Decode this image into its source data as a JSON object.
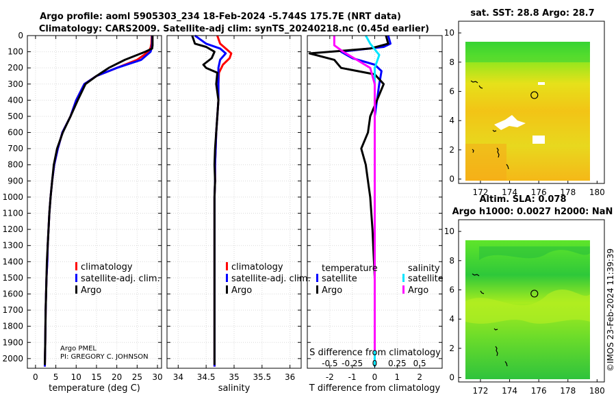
{
  "title_line1": "Argo profile: aoml 5905303_234 18-Feb-2024 -5.744S 175.7E (NRT data)",
  "title_line2": "Climatology: CARS2009. Satellite-adj clim: synTS_20240218.nc (0.45d earlier)",
  "credit_line1": "Argo PMEL",
  "credit_line2": "PI: GREGORY C. JOHNSON",
  "imos_stamp": "©IMOS 23-Feb-2024 11:39:39",
  "chart_data": [
    {
      "type": "line",
      "panel": "temperature",
      "xlabel": "temperature (deg C)",
      "xlim": [
        -2,
        31
      ],
      "xticks": [
        0,
        5,
        10,
        15,
        20,
        25,
        30
      ],
      "ylim": [
        0,
        2060
      ],
      "yticks": [
        0,
        100,
        200,
        300,
        400,
        500,
        600,
        700,
        800,
        900,
        1000,
        1100,
        1200,
        1300,
        1400,
        1500,
        1600,
        1700,
        1800,
        1900,
        2000
      ],
      "legend": [
        "climatology",
        "satellite-adj. clim.",
        "Argo"
      ],
      "series": [
        {
          "name": "climatology",
          "color": "#ff0000",
          "x": [
            28.6,
            28.5,
            28.3,
            27.8,
            25,
            20,
            15,
            12,
            10,
            8.6,
            6.6,
            5.5,
            4.6,
            4.1,
            3.7,
            3.4,
            3.2,
            3,
            2.9,
            2.7,
            2.6,
            2.5,
            2.4,
            2.3
          ],
          "y": [
            0,
            50,
            75,
            100,
            150,
            200,
            250,
            300,
            400,
            500,
            600,
            700,
            800,
            900,
            1000,
            1100,
            1200,
            1300,
            1400,
            1500,
            1600,
            1700,
            1900,
            2050
          ]
        },
        {
          "name": "satellite-adj. clim.",
          "color": "#0000ff",
          "x": [
            28.7,
            28.7,
            28.6,
            28.3,
            26,
            20,
            15,
            12,
            10,
            8.6,
            6.6,
            5.5,
            4.6,
            4.1,
            3.7,
            3.4,
            3.2,
            3,
            2.9,
            2.7,
            2.6,
            2.5,
            2.4,
            2.3
          ],
          "y": [
            0,
            50,
            75,
            100,
            150,
            200,
            250,
            300,
            400,
            500,
            600,
            700,
            800,
            900,
            1000,
            1100,
            1200,
            1300,
            1400,
            1500,
            1600,
            1700,
            1900,
            2050
          ]
        },
        {
          "name": "Argo",
          "color": "#000000",
          "x": [
            28.8,
            28.8,
            28.7,
            27,
            22,
            18,
            15,
            12.3,
            10.4,
            8.6,
            6.7,
            5.3,
            4.5,
            4.1,
            3.7,
            3.4,
            3.2,
            3,
            2.8,
            2.7,
            2.6,
            2.5,
            2.4,
            2.3
          ],
          "y": [
            0,
            60,
            80,
            100,
            150,
            200,
            250,
            300,
            400,
            500,
            600,
            700,
            800,
            900,
            1000,
            1100,
            1200,
            1300,
            1400,
            1500,
            1600,
            1700,
            1900,
            2040
          ]
        }
      ]
    },
    {
      "type": "line",
      "panel": "salinity",
      "xlabel": "salinity",
      "xlim": [
        33.8,
        36.2
      ],
      "xticks": [
        34,
        34.5,
        35,
        35.5,
        36
      ],
      "ylim": [
        0,
        2060
      ],
      "legend": [
        "climatology",
        "satellite-adj. clim.",
        "Argo"
      ],
      "series": [
        {
          "name": "climatology",
          "color": "#ff0000",
          "x": [
            34.7,
            34.75,
            34.85,
            34.95,
            34.92,
            34.8,
            34.73,
            34.72,
            34.72,
            34.7,
            34.68,
            34.67,
            34.66,
            34.66,
            34.65,
            34.65,
            34.65,
            34.65,
            34.65,
            34.65,
            34.65,
            34.65
          ],
          "y": [
            0,
            50,
            80,
            110,
            140,
            180,
            230,
            300,
            400,
            500,
            600,
            700,
            800,
            900,
            1000,
            1100,
            1200,
            1400,
            1600,
            1800,
            1950,
            2050
          ]
        },
        {
          "name": "satellite-adj. clim.",
          "color": "#0000ff",
          "x": [
            34.3,
            34.5,
            34.75,
            34.85,
            34.75,
            34.72,
            34.72,
            34.72,
            34.7,
            34.68,
            34.67,
            34.66,
            34.66,
            34.65,
            34.65,
            34.65,
            34.65,
            34.65,
            34.65,
            34.65,
            34.65
          ],
          "y": [
            0,
            50,
            80,
            110,
            150,
            200,
            300,
            400,
            500,
            600,
            700,
            800,
            900,
            1000,
            1100,
            1200,
            1400,
            1600,
            1800,
            1950,
            2050
          ]
        },
        {
          "name": "Argo",
          "color": "#000000",
          "x": [
            34.25,
            34.3,
            34.5,
            34.65,
            34.6,
            34.45,
            34.5,
            34.7,
            34.68,
            34.72,
            34.7,
            34.68,
            34.66,
            34.65,
            34.66,
            34.65,
            34.65,
            34.65,
            34.65,
            34.65,
            34.65
          ],
          "y": [
            0,
            50,
            70,
            100,
            140,
            180,
            200,
            230,
            300,
            400,
            500,
            600,
            700,
            800,
            900,
            1000,
            1200,
            1400,
            1600,
            1800,
            2040
          ]
        }
      ]
    },
    {
      "type": "line",
      "panel": "difference",
      "xlabel": "T difference from climatology",
      "xlabel_top": "S difference from climatology",
      "xlim": [
        -3,
        3
      ],
      "xticks": [
        -2,
        -1,
        0,
        1,
        2
      ],
      "sticks": [
        -0.5,
        -0.25,
        0,
        0.25,
        0.5
      ],
      "ylim": [
        0,
        2060
      ],
      "legend_titles": [
        "temperature",
        "salinity"
      ],
      "legend": [
        "satellite",
        "Argo",
        "satellite",
        "Argo"
      ],
      "series": [
        {
          "name": "T satellite",
          "color": "#0000ff",
          "x": [
            0.6,
            0.7,
            0.4,
            -1.5,
            -1,
            0,
            0.3,
            0.2,
            0.1,
            0,
            0,
            0,
            0,
            0,
            0,
            0,
            0,
            0,
            0,
            0,
            0
          ],
          "y": [
            0,
            50,
            70,
            100,
            140,
            180,
            220,
            300,
            400,
            500,
            600,
            800,
            1000,
            1200,
            1400,
            1600,
            1800,
            1900,
            2000,
            2030,
            2050
          ]
        },
        {
          "name": "T Argo",
          "color": "#000000",
          "x": [
            0.5,
            0.6,
            -0.2,
            -2.9,
            -1.8,
            -1.5,
            0,
            0.4,
            0.1,
            -0.2,
            -0.3,
            -0.6,
            -0.4,
            -0.3,
            -0.2,
            -0.1,
            0,
            0,
            0
          ],
          "y": [
            0,
            50,
            80,
            110,
            150,
            200,
            240,
            300,
            400,
            500,
            600,
            700,
            800,
            900,
            1000,
            1200,
            1500,
            1800,
            2040
          ]
        },
        {
          "name": "S satellite",
          "color": "#00e5ff",
          "x": [
            -0.1,
            -0.05,
            0.05,
            0,
            0,
            0,
            0,
            0,
            0,
            0,
            0,
            0
          ],
          "y": [
            0,
            50,
            120,
            200,
            300,
            400,
            600,
            800,
            1200,
            1600,
            2000,
            2050
          ]
        },
        {
          "name": "S Argo",
          "color": "#ff00ff",
          "x": [
            -0.45,
            -0.45,
            -0.35,
            -0.2,
            -0.05,
            0,
            0,
            0,
            0,
            0,
            0,
            0
          ],
          "y": [
            0,
            60,
            100,
            150,
            200,
            300,
            400,
            600,
            800,
            1200,
            1600,
            1950
          ]
        }
      ]
    },
    {
      "type": "heatmap",
      "panel": "sst_map",
      "title": "sat. SST: 28.8 Argo: 28.7",
      "xlim": [
        170.5,
        180.5
      ],
      "ylim": [
        -0.3,
        10.8
      ],
      "xticks": [
        172,
        174,
        176,
        178,
        180
      ],
      "yticks": [
        0,
        2,
        4,
        6,
        8,
        10
      ],
      "argo_marker": [
        175.7,
        5.744
      ]
    },
    {
      "type": "heatmap",
      "panel": "sla_map",
      "title_line1": "Altim. SLA: 0.078",
      "title_line2": "Argo h1000: 0.0027 h2000: NaN",
      "xlim": [
        170.5,
        180.5
      ],
      "ylim": [
        -0.3,
        10.8
      ],
      "xticks": [
        172,
        174,
        176,
        178,
        180
      ],
      "yticks": [
        0,
        2,
        4,
        6,
        8,
        10
      ],
      "argo_marker": [
        175.7,
        5.744
      ]
    }
  ]
}
